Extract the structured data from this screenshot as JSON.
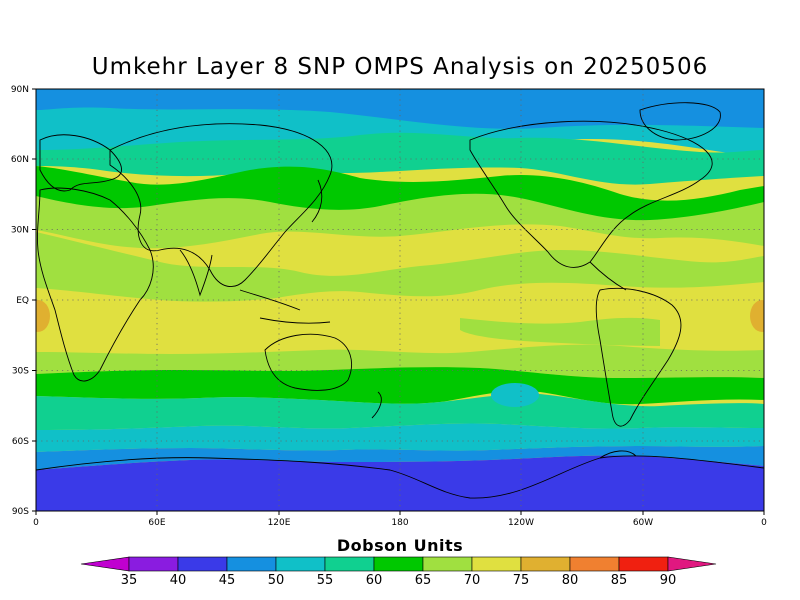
{
  "title": "Umkehr Layer 8 SNP OMPS Analysis on 20250506",
  "y_ticks": [
    "90N",
    "60N",
    "30N",
    "EQ",
    "30S",
    "60S",
    "90S"
  ],
  "x_ticks": [
    "0",
    "60E",
    "120E",
    "180",
    "120W",
    "60W",
    "0"
  ],
  "colorbar": {
    "title": "Dobson Units",
    "labels": [
      "35",
      "40",
      "45",
      "50",
      "55",
      "60",
      "65",
      "70",
      "75",
      "80",
      "85",
      "90"
    ],
    "colors": [
      "#c000d0",
      "#8a1ce0",
      "#3a3ae8",
      "#1590e0",
      "#10c0c8",
      "#10d090",
      "#00c800",
      "#a0e040",
      "#e0e040",
      "#e0b030",
      "#f08030",
      "#f02010",
      "#e01880"
    ]
  },
  "chart_data": {
    "type": "heatmap",
    "title": "Umkehr Layer 8 SNP OMPS Analysis on 20250506",
    "xlabel": "",
    "ylabel": "",
    "x_range": [
      "0",
      "0"
    ],
    "y_range": [
      "90S",
      "90N"
    ],
    "units": "Dobson Units",
    "color_levels": [
      35,
      40,
      45,
      50,
      55,
      60,
      65,
      70,
      75,
      80,
      85,
      90
    ],
    "zonal_pattern": [
      {
        "lat": "90N-75N",
        "value_range": [
          50,
          55
        ]
      },
      {
        "lat": "75N-55N",
        "value_range": [
          55,
          65
        ]
      },
      {
        "lat": "50N-30N",
        "value_range": [
          65,
          75
        ]
      },
      {
        "lat": "30N-20S",
        "value_range": [
          70,
          80
        ]
      },
      {
        "lat": "25S-45S",
        "value_range": [
          60,
          70
        ]
      },
      {
        "lat": "45S-60S",
        "value_range": [
          50,
          60
        ]
      },
      {
        "lat": "60S-90S",
        "value_range": [
          40,
          45
        ]
      }
    ],
    "grid": true,
    "legend": "bottom"
  }
}
